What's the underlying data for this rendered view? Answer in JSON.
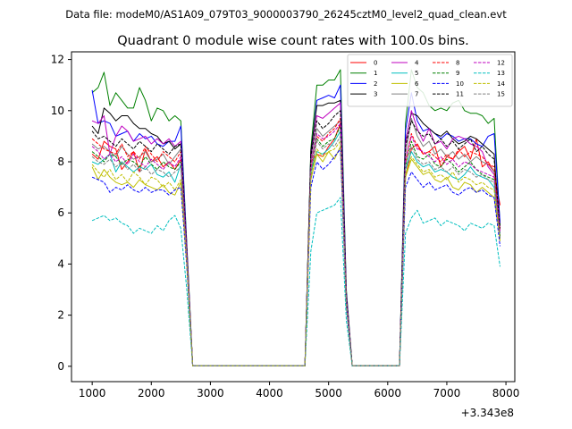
{
  "chart_data": {
    "type": "line",
    "suptitle": "Data file: modeM0/AS1A09_079T03_9000003790_26245cztM0_level2_quad_clean.evt",
    "title": "Quadrant 0 module wise count rates with 100.0s bins.",
    "xlabel": "",
    "ylabel": "",
    "x_offset_label": "+3.343e8",
    "xlim": [
      650,
      8150
    ],
    "ylim": [
      -0.6,
      12.3
    ],
    "xticks": [
      1000,
      2000,
      3000,
      4000,
      5000,
      6000,
      7000,
      8000
    ],
    "yticks": [
      0,
      2,
      4,
      6,
      8,
      10,
      12
    ],
    "legend_position": "upper right",
    "legend_columns": 4,
    "x": [
      1000,
      1100,
      1200,
      1300,
      1400,
      1500,
      1600,
      1700,
      1800,
      1900,
      2000,
      2100,
      2200,
      2300,
      2400,
      2500,
      2600,
      2700,
      4600,
      4700,
      4800,
      4900,
      5000,
      5100,
      5200,
      5300,
      5400,
      6200,
      6300,
      6400,
      6500,
      6600,
      6700,
      6800,
      6900,
      7000,
      7100,
      7200,
      7300,
      7400,
      7500,
      7600,
      7700,
      7800,
      7900
    ],
    "series": [
      {
        "name": "0",
        "color": "#ff0000",
        "dash": "solid",
        "values": [
          8.3,
          8.1,
          8.8,
          8.6,
          8.5,
          7.7,
          8.0,
          8.4,
          7.6,
          8.5,
          8.0,
          8.2,
          7.8,
          8.0,
          7.7,
          8.1,
          4.5,
          0.02,
          0.02,
          8.0,
          8.3,
          8.2,
          8.6,
          8.9,
          9.5,
          2.6,
          0.02,
          0.02,
          7.4,
          8.5,
          8.7,
          8.3,
          8.4,
          8.6,
          7.8,
          8.2,
          8.1,
          8.4,
          8.6,
          8.1,
          8.9,
          7.8,
          8.0,
          7.6,
          6.3
        ]
      },
      {
        "name": "1",
        "color": "#008000",
        "dash": "solid",
        "values": [
          10.7,
          10.9,
          11.5,
          10.2,
          10.7,
          10.4,
          10.1,
          10.1,
          10.9,
          10.4,
          9.6,
          10.1,
          10.0,
          9.6,
          9.8,
          9.6,
          4.8,
          0.02,
          0.02,
          8.5,
          11.0,
          11.0,
          11.2,
          11.2,
          11.6,
          3.0,
          0.02,
          0.02,
          9.5,
          11.6,
          10.9,
          10.7,
          10.2,
          10.0,
          10.1,
          10.0,
          10.3,
          10.4,
          10.0,
          9.9,
          9.9,
          9.8,
          9.5,
          9.7,
          5.5
        ]
      },
      {
        "name": "2",
        "color": "#0000ff",
        "dash": "solid",
        "values": [
          10.8,
          9.5,
          9.6,
          9.5,
          9.0,
          9.1,
          9.2,
          8.8,
          9.1,
          8.9,
          9.0,
          8.7,
          8.6,
          8.8,
          8.8,
          9.4,
          4.7,
          0.02,
          0.02,
          8.3,
          10.4,
          10.5,
          10.6,
          10.5,
          11.0,
          2.9,
          0.02,
          0.02,
          9.2,
          10.7,
          9.6,
          9.2,
          9.3,
          9.1,
          8.9,
          9.1,
          9.0,
          8.8,
          8.9,
          8.9,
          8.7,
          8.6,
          9.0,
          9.1,
          5.6
        ]
      },
      {
        "name": "3",
        "color": "#000000",
        "dash": "solid",
        "values": [
          9.4,
          9.1,
          10.1,
          9.9,
          9.6,
          9.8,
          9.8,
          9.5,
          9.3,
          9.3,
          9.1,
          9.0,
          8.7,
          8.8,
          8.5,
          8.7,
          4.5,
          0.02,
          0.02,
          8.4,
          10.2,
          10.2,
          10.3,
          10.3,
          10.4,
          2.8,
          0.02,
          0.02,
          8.8,
          9.9,
          9.8,
          9.5,
          9.3,
          9.1,
          9.0,
          9.2,
          8.9,
          8.7,
          8.8,
          9.0,
          8.9,
          8.7,
          8.5,
          8.3,
          5.0
        ]
      },
      {
        "name": "4",
        "color": "#bf00bf",
        "dash": "solid",
        "values": [
          9.6,
          9.5,
          9.8,
          8.3,
          9.0,
          9.4,
          9.2,
          8.8,
          8.9,
          9.0,
          8.7,
          8.9,
          8.7,
          8.9,
          8.6,
          8.8,
          4.6,
          0.02,
          0.02,
          8.1,
          9.8,
          9.7,
          9.9,
          10.1,
          10.3,
          2.8,
          0.02,
          0.02,
          8.7,
          10.0,
          9.3,
          8.8,
          9.3,
          8.7,
          8.8,
          8.5,
          8.9,
          9.0,
          8.9,
          8.7,
          8.6,
          8.4,
          7.8,
          7.5,
          5.4
        ]
      },
      {
        "name": "5",
        "color": "#00bfbf",
        "dash": "solid",
        "values": [
          8.0,
          7.9,
          8.1,
          8.3,
          7.6,
          8.0,
          7.8,
          7.6,
          7.8,
          7.7,
          7.9,
          7.5,
          7.4,
          7.6,
          7.2,
          7.9,
          4.3,
          0.02,
          0.02,
          7.6,
          8.4,
          8.3,
          8.5,
          8.8,
          9.2,
          2.5,
          0.02,
          0.02,
          7.7,
          8.4,
          8.0,
          7.8,
          7.9,
          7.6,
          7.7,
          7.6,
          7.4,
          7.3,
          7.5,
          7.8,
          7.5,
          7.4,
          7.3,
          7.0,
          5.2
        ]
      },
      {
        "name": "6",
        "color": "#bfbf00",
        "dash": "solid",
        "values": [
          7.8,
          7.3,
          7.7,
          7.4,
          7.2,
          7.1,
          7.2,
          7.0,
          7.3,
          7.1,
          7.0,
          6.9,
          7.1,
          6.8,
          6.7,
          7.2,
          4.0,
          0.02,
          0.02,
          7.3,
          8.3,
          8.0,
          8.4,
          8.1,
          8.6,
          2.4,
          0.02,
          0.02,
          7.4,
          8.1,
          7.8,
          7.5,
          7.6,
          7.3,
          7.2,
          7.4,
          7.0,
          6.9,
          7.2,
          7.1,
          6.8,
          7.0,
          6.8,
          6.6,
          5.0
        ]
      },
      {
        "name": "7",
        "color": "#808080",
        "dash": "solid",
        "values": [
          8.7,
          8.5,
          8.6,
          8.4,
          8.2,
          8.6,
          8.3,
          8.1,
          8.2,
          8.4,
          8.0,
          8.1,
          8.3,
          7.9,
          8.2,
          8.5,
          4.4,
          0.02,
          0.02,
          7.9,
          9.3,
          9.0,
          9.2,
          9.4,
          9.6,
          2.7,
          0.02,
          0.02,
          8.3,
          9.7,
          9.0,
          8.6,
          8.8,
          8.3,
          8.5,
          8.2,
          8.4,
          8.1,
          8.3,
          8.0,
          8.2,
          8.0,
          7.9,
          7.6,
          5.3
        ]
      },
      {
        "name": "8",
        "color": "#ff0000",
        "dash": "dashed",
        "values": [
          8.9,
          8.7,
          8.5,
          8.4,
          8.3,
          8.7,
          8.2,
          8.4,
          8.1,
          8.6,
          8.3,
          8.0,
          8.4,
          8.2,
          8.0,
          8.4,
          4.4,
          0.02,
          0.02,
          7.8,
          9.0,
          8.8,
          9.1,
          9.3,
          9.7,
          2.6,
          0.02,
          0.02,
          8.0,
          9.1,
          8.6,
          8.3,
          8.4,
          8.2,
          8.0,
          8.3,
          8.1,
          8.5,
          8.2,
          8.4,
          8.3,
          8.2,
          7.9,
          7.8,
          5.3
        ]
      },
      {
        "name": "9",
        "color": "#008000",
        "dash": "dashed",
        "values": [
          8.4,
          8.2,
          8.0,
          8.3,
          8.2,
          7.9,
          8.1,
          8.0,
          7.8,
          8.2,
          7.9,
          7.7,
          8.0,
          7.8,
          7.7,
          8.0,
          4.2,
          0.02,
          0.02,
          7.5,
          8.9,
          8.6,
          8.8,
          8.9,
          9.4,
          2.6,
          0.02,
          0.02,
          7.8,
          8.8,
          8.2,
          8.1,
          8.3,
          7.9,
          7.8,
          8.1,
          7.9,
          7.6,
          7.8,
          8.0,
          7.7,
          7.5,
          7.4,
          7.3,
          5.1
        ]
      },
      {
        "name": "10",
        "color": "#0000ff",
        "dash": "dashed",
        "values": [
          7.4,
          7.3,
          7.2,
          6.8,
          7.0,
          6.9,
          7.1,
          6.9,
          6.8,
          7.0,
          6.8,
          6.9,
          6.9,
          6.7,
          6.9,
          7.0,
          3.9,
          0.02,
          0.02,
          7.0,
          8.0,
          7.7,
          7.9,
          8.2,
          8.5,
          2.3,
          0.02,
          0.02,
          7.0,
          7.6,
          7.3,
          7.0,
          7.2,
          6.9,
          7.0,
          7.1,
          6.8,
          6.7,
          6.9,
          7.0,
          6.8,
          6.9,
          6.7,
          6.6,
          4.7
        ]
      },
      {
        "name": "11",
        "color": "#000000",
        "dash": "dashed",
        "values": [
          9.2,
          8.9,
          9.0,
          8.8,
          8.6,
          8.9,
          8.7,
          8.5,
          8.8,
          8.6,
          8.4,
          8.7,
          8.5,
          8.3,
          8.6,
          8.7,
          4.5,
          0.02,
          0.02,
          8.2,
          9.6,
          9.3,
          9.5,
          9.8,
          10.0,
          2.7,
          0.02,
          0.02,
          8.6,
          9.6,
          9.2,
          9.0,
          9.1,
          8.7,
          8.9,
          8.6,
          8.8,
          8.5,
          8.7,
          8.9,
          8.4,
          8.6,
          8.3,
          8.1,
          5.4
        ]
      },
      {
        "name": "12",
        "color": "#bf00bf",
        "dash": "dashed",
        "values": [
          8.6,
          8.4,
          8.1,
          8.3,
          8.0,
          8.2,
          7.9,
          8.3,
          8.0,
          7.8,
          8.1,
          7.9,
          7.7,
          8.0,
          7.8,
          8.2,
          4.3,
          0.02,
          0.02,
          7.7,
          9.1,
          8.9,
          9.0,
          9.2,
          9.5,
          2.6,
          0.02,
          0.02,
          8.1,
          9.0,
          8.5,
          8.4,
          8.2,
          8.0,
          8.2,
          7.9,
          8.1,
          7.8,
          8.0,
          7.9,
          7.7,
          7.6,
          7.5,
          7.4,
          5.2
        ]
      },
      {
        "name": "13",
        "color": "#00bfbf",
        "dash": "dashed",
        "values": [
          5.7,
          5.8,
          5.9,
          5.7,
          5.8,
          5.6,
          5.5,
          5.2,
          5.4,
          5.3,
          5.2,
          5.5,
          5.3,
          5.7,
          5.9,
          5.4,
          3.0,
          0.02,
          0.02,
          4.5,
          6.0,
          6.1,
          6.2,
          6.3,
          6.6,
          1.8,
          0.02,
          0.02,
          5.2,
          5.8,
          6.1,
          5.6,
          5.7,
          5.8,
          5.5,
          5.7,
          5.6,
          5.5,
          5.3,
          5.6,
          5.5,
          5.4,
          5.6,
          5.5,
          3.9
        ]
      },
      {
        "name": "14",
        "color": "#bfbf00",
        "dash": "dashed",
        "values": [
          7.9,
          7.6,
          7.4,
          7.7,
          7.3,
          7.5,
          7.2,
          7.6,
          7.4,
          7.1,
          7.4,
          7.3,
          7.0,
          7.2,
          6.9,
          7.3,
          4.0,
          0.02,
          0.02,
          7.3,
          8.5,
          8.2,
          8.4,
          8.5,
          8.8,
          2.4,
          0.02,
          0.02,
          7.5,
          8.2,
          7.9,
          7.6,
          7.7,
          7.4,
          7.5,
          7.3,
          7.6,
          7.2,
          7.4,
          7.3,
          7.1,
          7.2,
          7.0,
          6.9,
          4.9
        ]
      },
      {
        "name": "15",
        "color": "#808080",
        "dash": "dashed",
        "values": [
          8.2,
          8.0,
          7.9,
          8.1,
          7.8,
          8.0,
          7.7,
          7.9,
          7.6,
          7.8,
          7.5,
          7.7,
          7.6,
          7.4,
          7.6,
          7.8,
          4.2,
          0.02,
          0.02,
          7.6,
          8.8,
          8.5,
          8.7,
          8.6,
          9.0,
          2.5,
          0.02,
          0.02,
          7.9,
          8.6,
          8.1,
          7.9,
          8.0,
          7.7,
          7.8,
          7.6,
          7.8,
          7.5,
          7.7,
          7.6,
          7.4,
          7.5,
          7.3,
          7.2,
          5.0
        ]
      }
    ]
  }
}
